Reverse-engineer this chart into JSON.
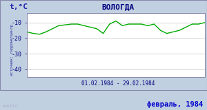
{
  "title": "ВОЛОГДА",
  "ylabel": "t,°C",
  "xlabel_range": "01.02.1984 - 29.02.1984",
  "footer_text": "февраль, 1984",
  "sidebar_text": "источник: гидрометцентр",
  "watermark": "lab127",
  "days": [
    1,
    2,
    3,
    4,
    5,
    6,
    7,
    8,
    9,
    10,
    11,
    12,
    13,
    14,
    15,
    16,
    17,
    18,
    19,
    20,
    21,
    22,
    23,
    24,
    25,
    26,
    27,
    28,
    29
  ],
  "temps": [
    -16,
    -17,
    -17.5,
    -16,
    -14,
    -12,
    -11.5,
    -11,
    -11,
    -12,
    -13,
    -14,
    -17,
    -11,
    -9,
    -12,
    -11,
    -11,
    -11,
    -12,
    -11,
    -15,
    -17,
    -16,
    -15,
    -13,
    -11,
    -11,
    -10
  ],
  "line_color": "#00aa00",
  "plot_bg": "#ffffff",
  "fig_bg": "#c0d0e0",
  "sidebar_bg": "#d8e4f0",
  "title_color": "#000080",
  "axis_label_color": "#1a1aaa",
  "tick_color": "#000080",
  "grid_color": "#c0c0c0",
  "ylim": [
    -45,
    -4
  ],
  "yticks": [
    -10,
    -20,
    -30,
    -40
  ],
  "footer_color": "#0000cc",
  "sidebar_color": "#3030a0",
  "border_color": "#8888aa"
}
